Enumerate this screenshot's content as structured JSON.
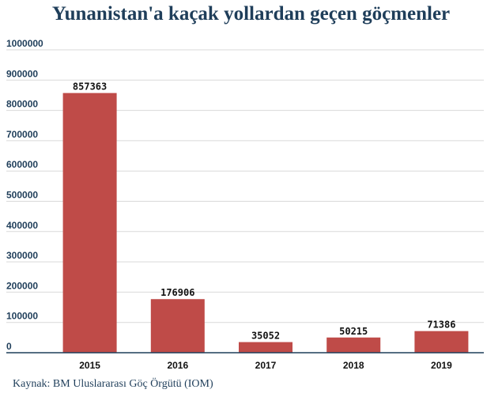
{
  "chart_data": {
    "type": "bar",
    "title": "Yunanistan'a kaçak yollardan geçen göçmenler",
    "xlabel": "",
    "ylabel": "",
    "categories": [
      "2015",
      "2016",
      "2017",
      "2018",
      "2019"
    ],
    "values": [
      857363,
      176906,
      35052,
      50215,
      71386
    ],
    "data_labels": [
      "857363",
      "176906",
      "35052",
      "50215",
      "71386"
    ],
    "ylim": [
      0,
      1000000
    ],
    "yticks": [
      0,
      100000,
      200000,
      300000,
      400000,
      500000,
      600000,
      700000,
      800000,
      900000,
      1000000
    ],
    "ytick_labels": [
      "0",
      "100000",
      "200000",
      "300000",
      "400000",
      "500000",
      "600000",
      "700000",
      "800000",
      "900000",
      "1000000"
    ],
    "grid": true,
    "legend": "none",
    "colors": {
      "bar": "#bf4b48",
      "title": "#1f3e5a",
      "axis_text": "#1f3e5a",
      "grid": "#d9d9d9",
      "baseline": "#1f3e5a"
    }
  },
  "source": "Kaynak: BM Uluslararası Göç Örgütü (IOM)"
}
